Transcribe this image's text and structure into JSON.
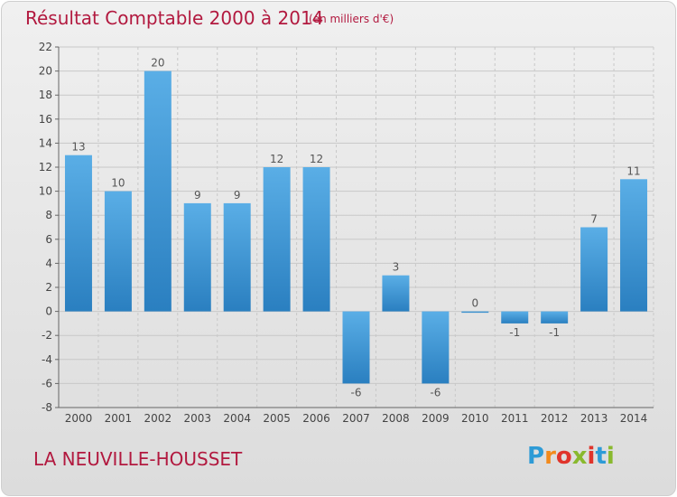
{
  "header": {
    "title": "Résultat Comptable 2000 à 2014",
    "subtitle": "(en milliers d'€)"
  },
  "footer": {
    "commune": "LA NEUVILLE-HOUSSET",
    "logo_letters": [
      "P",
      "r",
      "o",
      "x",
      "i",
      "t",
      "i"
    ],
    "logo_colors": [
      "#2e9bd6",
      "#f28a1c",
      "#e0342b",
      "#89b92e",
      "#e0342b",
      "#2e9bd6",
      "#89b92e"
    ]
  },
  "chart_data": {
    "type": "bar",
    "title": "Résultat Comptable 2000 à 2014",
    "subtitle": "(en milliers d'€)",
    "xlabel": "",
    "ylabel": "",
    "categories": [
      "2000",
      "2001",
      "2002",
      "2003",
      "2004",
      "2005",
      "2006",
      "2007",
      "2008",
      "2009",
      "2010",
      "2011",
      "2012",
      "2013",
      "2014"
    ],
    "values": [
      13,
      10,
      20,
      9,
      9,
      12,
      12,
      -6,
      3,
      -6,
      0,
      -1,
      -1,
      7,
      11
    ],
    "data_labels": [
      "13",
      "10",
      "20",
      "9",
      "9",
      "12",
      "12",
      "-6",
      "3",
      "-6",
      "0",
      "-1",
      "-1",
      "7",
      "11"
    ],
    "ylim": [
      -8,
      22
    ],
    "yticks": [
      -8,
      -6,
      -4,
      -2,
      0,
      2,
      4,
      6,
      8,
      10,
      12,
      14,
      16,
      18,
      20,
      22
    ],
    "grid": true,
    "legend": "none",
    "bar_color_light": "#5aaee6",
    "bar_color_dark": "#2a7fc0",
    "grid_color": "#c8c8c8"
  }
}
